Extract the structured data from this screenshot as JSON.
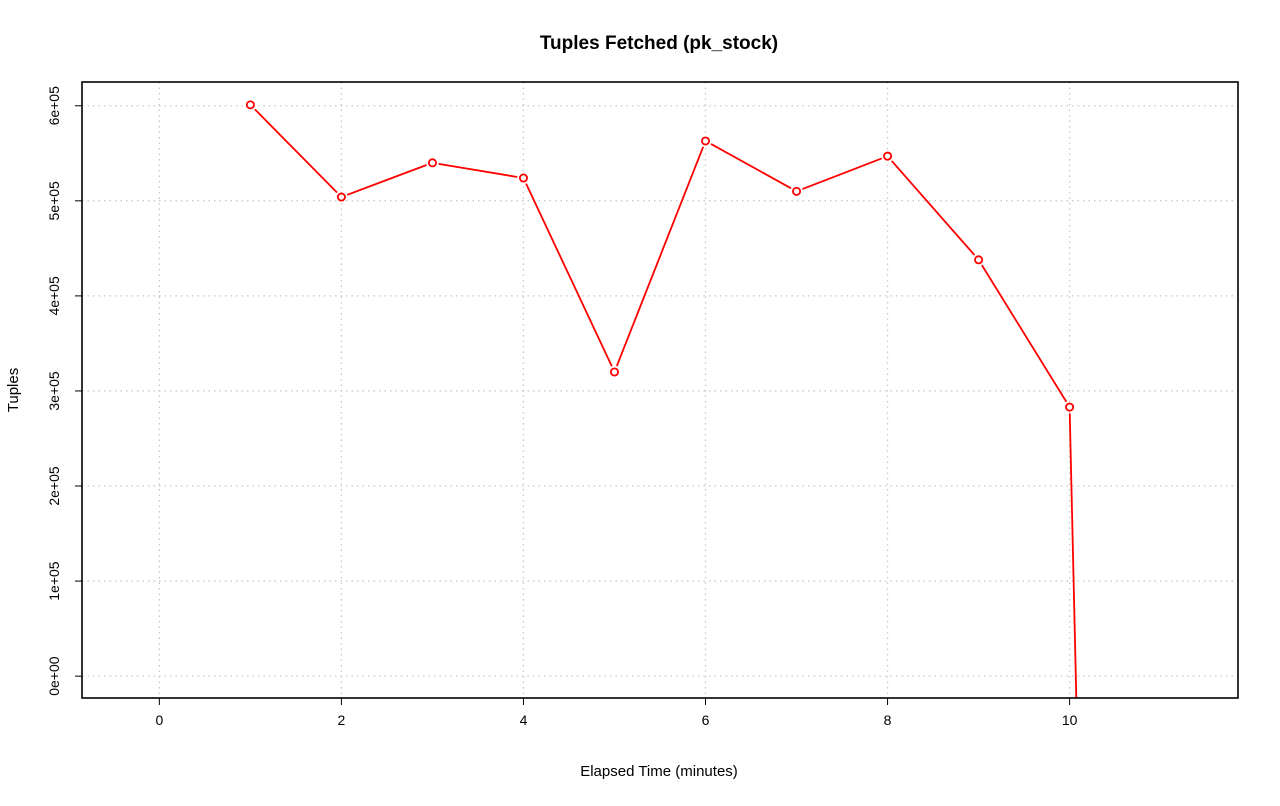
{
  "chart_data": {
    "type": "line",
    "title": "Tuples Fetched (pk_stock)",
    "xlabel": "Elapsed Time (minutes)",
    "ylabel": "Tuples",
    "xlim": [
      -0.85,
      11.85
    ],
    "ylim": [
      -23000,
      625000
    ],
    "x_ticks": [
      0,
      2,
      4,
      6,
      8,
      10
    ],
    "x_tick_labels": [
      "0",
      "2",
      "4",
      "6",
      "8",
      "10"
    ],
    "y_ticks": [
      0,
      100000,
      200000,
      300000,
      400000,
      500000,
      600000
    ],
    "y_tick_labels": [
      "0e+00",
      "1e+05",
      "2e+05",
      "3e+05",
      "4e+05",
      "5e+05",
      "6e+05"
    ],
    "grid": true,
    "series": [
      {
        "color": "#ff0000",
        "marker": "open-circle",
        "x": [
          1,
          2,
          3,
          4,
          5,
          6,
          7,
          8,
          9,
          10
        ],
        "y": [
          601000,
          504000,
          540000,
          524000,
          320000,
          563000,
          510000,
          547000,
          438000,
          283000
        ],
        "tail": {
          "x": 10.08,
          "y": -50000
        }
      }
    ]
  }
}
